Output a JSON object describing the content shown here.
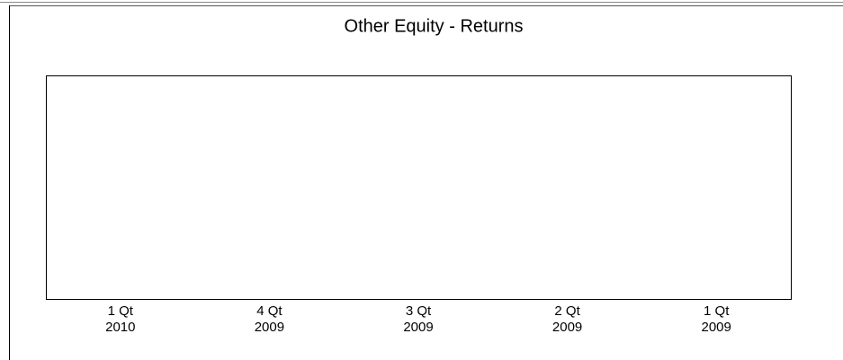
{
  "chart_data": {
    "type": "bar",
    "title": "Other Equity  -  Returns",
    "categories": [
      [
        "1 Qt",
        "2010"
      ],
      [
        "4 Qt",
        "2009"
      ],
      [
        "3 Qt",
        "2009"
      ],
      [
        "2 Qt",
        "2009"
      ],
      [
        "1 Qt",
        "2009"
      ]
    ]
  }
}
